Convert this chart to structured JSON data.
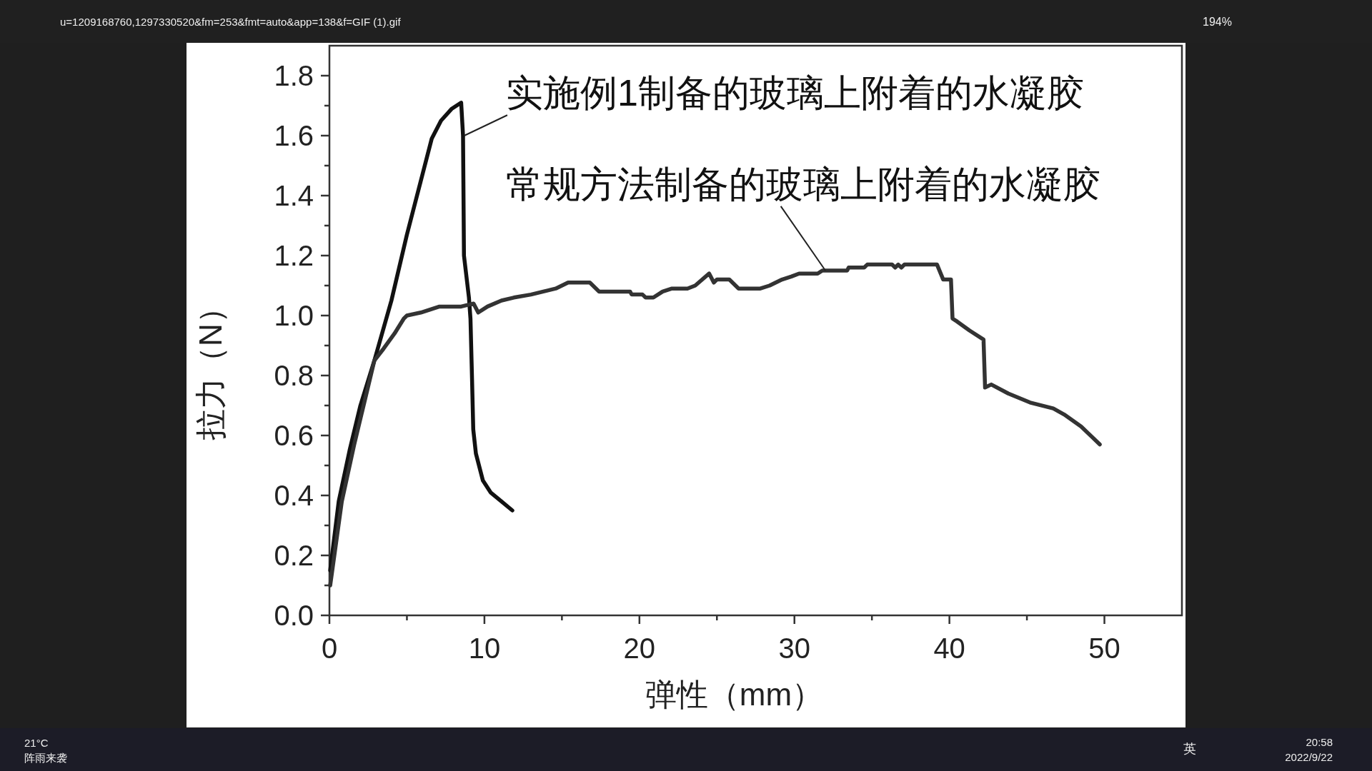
{
  "chart_data": {
    "type": "line",
    "xlabel": "弹性（mm）",
    "ylabel": "拉力（N）",
    "xlim": [
      0,
      55
    ],
    "ylim": [
      0,
      1.9
    ],
    "xticks": [
      0,
      {
        "value": 5,
        "label": null
      },
      10,
      {
        "value": 15,
        "label": null
      },
      20,
      {
        "value": 25,
        "label": null
      },
      30,
      {
        "value": 35,
        "label": null
      },
      40,
      {
        "value": 45,
        "label": null
      },
      50
    ],
    "yticks": [
      {
        "value": 0,
        "label": "0.0"
      },
      {
        "value": 0.1,
        "label": null
      },
      0.2,
      {
        "value": 0.3,
        "label": null
      },
      0.4,
      {
        "value": 0.5,
        "label": null
      },
      0.6,
      {
        "value": 0.7,
        "label": null
      },
      0.8,
      {
        "value": 0.9,
        "label": null
      },
      {
        "value": 1,
        "label": "1.0"
      },
      {
        "value": 1.1,
        "label": null
      },
      1.2,
      {
        "value": 1.3,
        "label": null
      },
      1.4,
      {
        "value": 1.5,
        "label": null
      },
      1.6,
      {
        "value": 1.7,
        "label": null
      },
      1.8
    ],
    "line_style": "solid",
    "series": [
      {
        "color": "#111111",
        "x": [
          0.05,
          0.6,
          1.3,
          2.0,
          2.9,
          4.0,
          5.0,
          6.0,
          6.6,
          7.2,
          7.9,
          8.5,
          8.62,
          8.68,
          9.0,
          9.1,
          9.2,
          9.28,
          9.45,
          9.9,
          10.4,
          11.1,
          11.8
        ],
        "values": [
          0.15,
          0.38,
          0.55,
          0.7,
          0.85,
          1.05,
          1.27,
          1.47,
          1.59,
          1.65,
          1.69,
          1.71,
          1.6,
          1.2,
          1.06,
          0.99,
          0.79,
          0.62,
          0.54,
          0.45,
          0.41,
          0.38,
          0.35
        ]
      },
      {
        "color": "#333333",
        "x": [
          0.05,
          0.8,
          1.6,
          2.9,
          3.5,
          4.2,
          4.8,
          5.0,
          5.9,
          7.1,
          8.5,
          9.3,
          9.6,
          10.2,
          11.1,
          11.9,
          13.0,
          13.8,
          14.6,
          15.4,
          16.8,
          17.4,
          19.4,
          19.5,
          20.2,
          20.4,
          20.9,
          21.5,
          22.1,
          23.1,
          23.6,
          24.5,
          24.8,
          25.0,
          25.8,
          26.4,
          27.8,
          28.4,
          29.2,
          29.8,
          30.3,
          31.5,
          31.8,
          33.4,
          33.5,
          34.5,
          34.7,
          36.3,
          36.5,
          36.7,
          36.9,
          37.1,
          39.2,
          39.6,
          40.1,
          40.2,
          40.5,
          41.3,
          42.2,
          42.3,
          42.7,
          43.8,
          45.2,
          46.7,
          47.4,
          48.5,
          49.7
        ],
        "values": [
          0.1,
          0.38,
          0.57,
          0.85,
          0.89,
          0.94,
          0.99,
          1.0,
          1.01,
          1.03,
          1.03,
          1.04,
          1.01,
          1.03,
          1.05,
          1.06,
          1.07,
          1.08,
          1.09,
          1.11,
          1.11,
          1.08,
          1.08,
          1.07,
          1.07,
          1.06,
          1.06,
          1.08,
          1.09,
          1.09,
          1.1,
          1.14,
          1.11,
          1.12,
          1.12,
          1.09,
          1.09,
          1.1,
          1.12,
          1.13,
          1.14,
          1.14,
          1.15,
          1.15,
          1.16,
          1.16,
          1.17,
          1.17,
          1.16,
          1.17,
          1.16,
          1.17,
          1.17,
          1.12,
          1.12,
          0.99,
          0.98,
          0.95,
          0.92,
          0.76,
          0.77,
          0.74,
          0.71,
          0.69,
          0.67,
          0.63,
          0.57
        ]
      }
    ],
    "annotations": [
      {
        "text": "实施例1制备的玻璃上附着的水凝胶",
        "x": 8.7,
        "y": 1.6
      },
      {
        "text": "常规方法制备的玻璃上附着的水凝胶",
        "x": 32,
        "y": 1.15
      },
      "u=1209168760,1297330520&fm=253&fmt=auto&app=138&f=GIF (1).gif",
      "194%",
      "21°C",
      "阵雨来袭",
      "英",
      "20:58",
      "2022/9/22"
    ]
  }
}
